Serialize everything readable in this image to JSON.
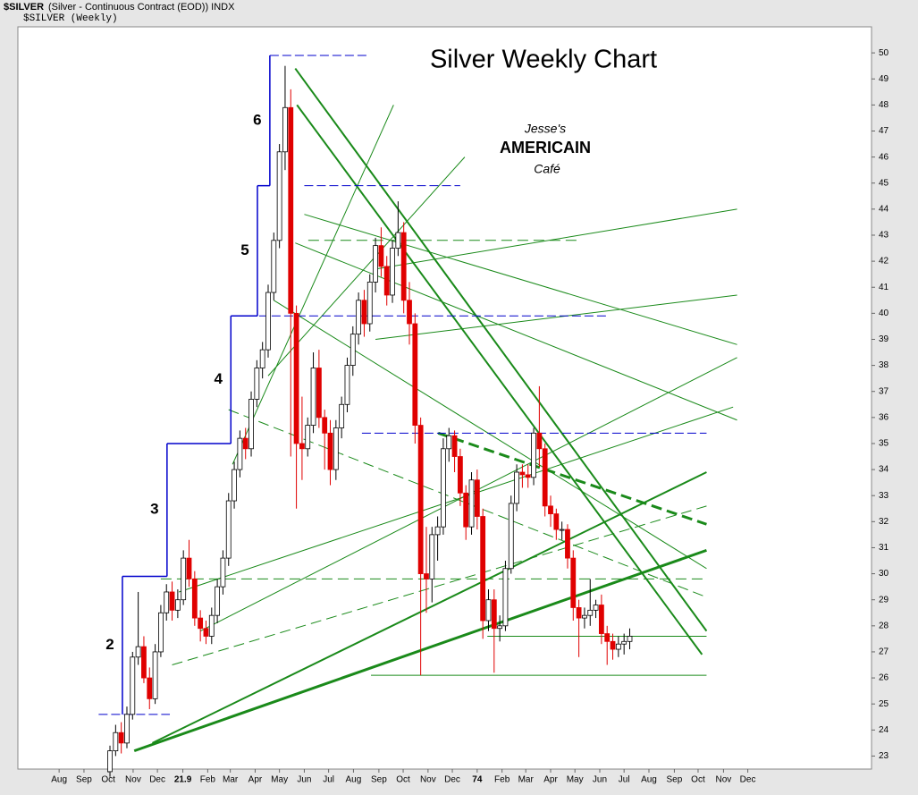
{
  "header": {
    "symbol": "$SILVER",
    "description": "(Silver - Continuous Contract (EOD)) INDX",
    "legend": "$SILVER (Weekly)"
  },
  "logo": {
    "line1": "Jesse's",
    "line2": "AMERICAIN",
    "line3": "Café"
  },
  "chart_data": {
    "type": "candlestick",
    "title": "Silver Weekly Chart",
    "up_color": "#ffffff",
    "down_color": "#e00000",
    "outline_color": "#000000",
    "xlim": [
      -7.3,
      143.8
    ],
    "xticks": [
      {
        "value": 0,
        "label": "Aug"
      },
      {
        "value": 4.4,
        "label": "Sep"
      },
      {
        "value": 8.7,
        "label": "Oct"
      },
      {
        "value": 13.1,
        "label": "Nov"
      },
      {
        "value": 17.4,
        "label": "Dec"
      },
      21.9,
      {
        "value": 26.3,
        "label": "Feb"
      },
      {
        "value": 30.3,
        "label": "Mar"
      },
      {
        "value": 34.7,
        "label": "Apr"
      },
      {
        "value": 39,
        "label": "May"
      },
      {
        "value": 43.4,
        "label": "Jun"
      },
      {
        "value": 47.7,
        "label": "Jul"
      },
      {
        "value": 52.1,
        "label": "Aug"
      },
      {
        "value": 56.6,
        "label": "Sep"
      },
      {
        "value": 60.9,
        "label": "Oct"
      },
      {
        "value": 65.3,
        "label": "Nov"
      },
      {
        "value": 69.6,
        "label": "Dec"
      },
      74,
      {
        "value": 78.4,
        "label": "Feb"
      },
      {
        "value": 82.6,
        "label": "Mar"
      },
      {
        "value": 87,
        "label": "Apr"
      },
      {
        "value": 91.3,
        "label": "May"
      },
      {
        "value": 95.7,
        "label": "Jun"
      },
      {
        "value": 100,
        "label": "Jul"
      },
      {
        "value": 104.4,
        "label": "Aug"
      },
      {
        "value": 108.9,
        "label": "Sep"
      },
      {
        "value": 113.1,
        "label": "Oct"
      },
      {
        "value": 117.6,
        "label": "Nov"
      },
      {
        "value": 121.9,
        "label": "Dec"
      }
    ],
    "year_ticks": [
      21.9,
      74
    ],
    "ylim": [
      22.5,
      51.0
    ],
    "yticks": [
      23,
      24,
      25,
      26,
      27,
      28,
      29,
      30,
      31,
      32,
      33,
      34,
      35,
      36,
      37,
      38,
      39,
      40,
      41,
      42,
      43,
      44,
      45,
      46,
      47,
      48,
      49,
      50
    ],
    "x": [
      9,
      10,
      11,
      12,
      13,
      14,
      15,
      16,
      17,
      18,
      19,
      20,
      21,
      22,
      23,
      24,
      25,
      26,
      27,
      28,
      29,
      30,
      31,
      32,
      33,
      34,
      35,
      36,
      37,
      38,
      39,
      40,
      41,
      42,
      43,
      44,
      45,
      46,
      47,
      48,
      49,
      50,
      51,
      52,
      53,
      54,
      55,
      56,
      57,
      58,
      59,
      60,
      61,
      62,
      63,
      64,
      65,
      66,
      67,
      68,
      69,
      70,
      71,
      72,
      73,
      74,
      75,
      76,
      77,
      78,
      79,
      80,
      81,
      82,
      83,
      84,
      85,
      86,
      87,
      88,
      89,
      90,
      91,
      92,
      93,
      94,
      95,
      96,
      97,
      98,
      99,
      100,
      101
    ],
    "open": [
      22.4,
      23.2,
      23.9,
      23.5,
      24.6,
      26.8,
      27.2,
      26.0,
      25.2,
      27.0,
      28.5,
      29.3,
      28.6,
      29.0,
      30.6,
      29.8,
      28.3,
      27.9,
      27.6,
      28.4,
      29.5,
      30.6,
      32.8,
      34.0,
      35.2,
      34.8,
      36.7,
      37.9,
      38.6,
      40.8,
      42.8,
      46.2,
      47.9,
      40.0,
      35.0,
      34.8,
      35.7,
      37.9,
      36.0,
      35.4,
      34.0,
      35.6,
      36.5,
      38.0,
      39.2,
      40.5,
      39.6,
      41.2,
      42.6,
      41.8,
      40.7,
      42.5,
      43.1,
      40.5,
      39.6,
      35.7,
      30.0,
      29.8,
      31.5,
      31.8,
      34.8,
      35.3,
      34.5,
      33.1,
      31.8,
      33.6,
      32.2,
      28.2,
      29.0,
      27.9,
      28.0,
      30.2,
      32.7,
      33.9,
      33.8,
      33.7,
      35.4,
      34.8,
      32.6,
      32.3,
      31.7,
      31.7,
      30.6,
      28.7,
      28.3,
      28.4,
      28.6,
      28.8,
      27.7,
      27.4,
      27.1,
      27.3,
      27.4
    ],
    "high": [
      23.4,
      24.2,
      24.3,
      24.9,
      27.0,
      29.3,
      27.6,
      26.4,
      27.3,
      28.8,
      29.6,
      29.7,
      29.4,
      30.9,
      31.3,
      30.1,
      28.6,
      28.2,
      28.7,
      29.8,
      30.9,
      33.1,
      34.3,
      35.5,
      35.6,
      37.0,
      38.2,
      38.9,
      41.1,
      43.1,
      46.5,
      49.5,
      48.6,
      40.3,
      36.8,
      36.0,
      38.5,
      38.6,
      36.3,
      35.9,
      35.9,
      36.8,
      38.3,
      39.5,
      40.8,
      40.9,
      41.5,
      42.9,
      43.3,
      42.2,
      42.8,
      44.3,
      43.5,
      41.2,
      40.0,
      36.0,
      31.8,
      31.8,
      32.2,
      35.2,
      35.6,
      35.5,
      34.8,
      33.4,
      33.9,
      34.0,
      32.5,
      29.4,
      29.4,
      28.4,
      30.5,
      33.0,
      34.2,
      34.2,
      34.2,
      35.6,
      37.2,
      35.0,
      33.0,
      32.5,
      32.0,
      31.9,
      30.9,
      29.0,
      28.7,
      29.8,
      29.0,
      29.2,
      28.0,
      27.7,
      27.6,
      27.7,
      27.9
    ],
    "low": [
      22.2,
      23.0,
      23.1,
      23.3,
      24.4,
      26.5,
      25.8,
      24.8,
      25.0,
      26.8,
      28.2,
      28.2,
      28.3,
      28.8,
      29.5,
      28.0,
      27.4,
      27.3,
      27.3,
      28.1,
      29.2,
      30.3,
      32.5,
      33.7,
      34.4,
      34.5,
      36.4,
      37.5,
      38.3,
      40.5,
      42.5,
      45.5,
      34.5,
      32.5,
      33.6,
      34.5,
      35.4,
      35.6,
      34.0,
      33.4,
      33.6,
      35.2,
      36.2,
      37.6,
      38.8,
      39.1,
      39.3,
      40.8,
      41.4,
      40.3,
      40.4,
      42.2,
      40.0,
      38.8,
      35.0,
      26.1,
      28.5,
      28.9,
      30.5,
      31.5,
      34.3,
      33.9,
      32.6,
      31.3,
      31.5,
      31.7,
      27.5,
      27.8,
      26.2,
      27.4,
      27.8,
      30.0,
      32.4,
      33.3,
      33.3,
      33.4,
      34.1,
      32.2,
      31.8,
      31.3,
      31.3,
      30.2,
      28.2,
      26.8,
      27.9,
      28.0,
      28.3,
      27.3,
      26.5,
      26.7,
      26.8,
      26.9,
      27.1
    ],
    "close": [
      23.2,
      23.9,
      23.5,
      24.6,
      26.8,
      27.2,
      26.0,
      25.2,
      27.0,
      28.5,
      29.3,
      28.6,
      29.0,
      30.6,
      29.8,
      28.3,
      27.9,
      27.6,
      28.4,
      29.5,
      30.6,
      32.8,
      34.0,
      35.2,
      34.8,
      36.7,
      37.9,
      38.6,
      40.8,
      42.8,
      46.2,
      47.9,
      40.0,
      35.0,
      34.8,
      35.7,
      37.9,
      36.0,
      35.4,
      34.0,
      35.6,
      36.5,
      38.0,
      39.2,
      40.5,
      39.6,
      41.2,
      42.6,
      41.8,
      40.7,
      42.5,
      43.1,
      40.5,
      39.6,
      35.7,
      30.0,
      29.8,
      31.5,
      31.8,
      34.8,
      35.3,
      34.5,
      33.1,
      31.8,
      33.6,
      32.2,
      28.2,
      29.0,
      27.9,
      28.0,
      30.2,
      32.7,
      33.9,
      33.8,
      33.7,
      35.4,
      34.8,
      32.6,
      32.3,
      31.7,
      31.7,
      30.6,
      28.7,
      28.3,
      28.4,
      28.6,
      28.8,
      27.7,
      27.4,
      27.1,
      27.3,
      27.4,
      27.6
    ],
    "wave_color": "#0000cc",
    "waves": [
      {
        "label": "2",
        "x": 11.2,
        "from": 24.6,
        "to": 29.9,
        "end": 19.1
      },
      {
        "label": "3",
        "x": 19.1,
        "from": 29.9,
        "to": 35.0,
        "end": 30.4
      },
      {
        "label": "4",
        "x": 30.4,
        "from": 35.0,
        "to": 39.9,
        "end": 35.1
      },
      {
        "label": "5",
        "x": 35.1,
        "from": 39.9,
        "to": 44.9,
        "end": 37.3
      },
      {
        "label": "6",
        "x": 37.3,
        "from": 44.9,
        "to": 49.9,
        "end": 37.3
      }
    ],
    "levels": [
      {
        "y": 24.6,
        "x": [
          7.0,
          19.6
        ]
      },
      {
        "y": 49.9,
        "x": [
          37.3,
          54.4
        ]
      },
      {
        "y": 44.9,
        "x": [
          43.4,
          71.0
        ]
      },
      {
        "y": 39.9,
        "x": [
          35.4,
          97.2
        ]
      },
      {
        "y": 35.4,
        "x": [
          53.6,
          114.6
        ]
      }
    ],
    "trend_color": "#1a8a1a",
    "trendlines": [
      {
        "x": [
          13.3,
          114.6
        ],
        "y": [
          23.2,
          30.9
        ],
        "width": 3,
        "dash": false
      },
      {
        "x": [
          16.5,
          114.6
        ],
        "y": [
          23.5,
          33.9
        ],
        "width": 2,
        "dash": false
      },
      {
        "x": [
          41.8,
          114.6
        ],
        "y": [
          49.4,
          27.8
        ],
        "width": 2,
        "dash": false
      },
      {
        "x": [
          42.1,
          113.8
        ],
        "y": [
          48.0,
          26.9
        ],
        "width": 2,
        "dash": false
      },
      {
        "x": [
          67.1,
          114.6
        ],
        "y": [
          35.4,
          31.9
        ],
        "width": 3,
        "dash": true
      },
      {
        "x": [
          55.2,
          114.6
        ],
        "y": [
          26.1,
          26.1
        ],
        "width": 1,
        "dash": false
      },
      {
        "x": [
          75.8,
          114.6
        ],
        "y": [
          27.6,
          27.6
        ],
        "width": 1,
        "dash": false
      },
      {
        "x": [
          44.1,
          91.6
        ],
        "y": [
          42.8,
          42.8
        ],
        "width": 1,
        "dash": true
      },
      {
        "x": [
          56,
          120
        ],
        "y": [
          41.7,
          44.0
        ],
        "width": 1,
        "dash": false
      },
      {
        "x": [
          56,
          120
        ],
        "y": [
          39.0,
          40.7
        ],
        "width": 1,
        "dash": false
      },
      {
        "x": [
          43.4,
          120
        ],
        "y": [
          43.8,
          38.8
        ],
        "width": 1,
        "dash": false
      },
      {
        "x": [
          41.8,
          120
        ],
        "y": [
          42.7,
          35.9
        ],
        "width": 1,
        "dash": false
      },
      {
        "x": [
          21.2,
          119.3
        ],
        "y": [
          29.3,
          36.4
        ],
        "width": 1,
        "dash": false
      },
      {
        "x": [
          37,
          71.8
        ],
        "y": [
          37.6,
          46.0
        ],
        "width": 1,
        "dash": false
      },
      {
        "x": [
          30.7,
          59.2
        ],
        "y": [
          34.2,
          48.0
        ],
        "width": 1,
        "dash": false
      },
      {
        "x": [
          20,
          114.6
        ],
        "y": [
          26.5,
          32.6
        ],
        "width": 1,
        "dash": true
      },
      {
        "x": [
          25,
          120
        ],
        "y": [
          27.8,
          38.3
        ],
        "width": 1,
        "dash": false
      },
      {
        "x": [
          30,
          114.6
        ],
        "y": [
          36.3,
          29.1
        ],
        "width": 1,
        "dash": true
      },
      {
        "x": [
          38,
          114.6
        ],
        "y": [
          40.5,
          30.2
        ],
        "width": 1,
        "dash": false
      },
      {
        "x": [
          18,
          114.6
        ],
        "y": [
          29.8,
          29.8
        ],
        "width": 1,
        "dash": true
      }
    ]
  }
}
